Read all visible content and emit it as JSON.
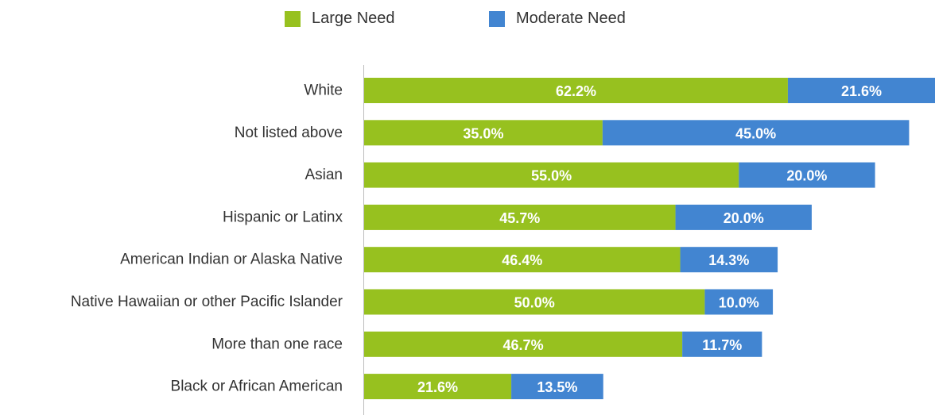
{
  "chart_data": {
    "type": "bar",
    "orientation": "horizontal",
    "stacked": true,
    "categories": [
      "White",
      "Not listed above",
      "Asian",
      "Hispanic or Latinx",
      "American Indian or Alaska Native",
      "Native Hawaiian or other Pacific Islander",
      "More than one race",
      "Black or African American"
    ],
    "series": [
      {
        "name": "Large Need",
        "color": "#97c11f",
        "values": [
          62.2,
          35.0,
          55.0,
          45.7,
          46.4,
          50.0,
          46.7,
          21.6
        ],
        "labels": [
          "62.2%",
          "35.0%",
          "55.0%",
          "45.7%",
          "46.4%",
          "50.0%",
          "46.7%",
          "21.6%"
        ]
      },
      {
        "name": "Moderate Need",
        "color": "#4285d1",
        "values": [
          21.6,
          45.0,
          20.0,
          20.0,
          14.3,
          10.0,
          11.7,
          13.5
        ],
        "labels": [
          "21.6%",
          "45.0%",
          "20.0%",
          "20.0%",
          "14.3%",
          "10.0%",
          "11.7%",
          "13.5%"
        ]
      }
    ],
    "xlim": [
      0,
      83.8
    ],
    "grid": false,
    "legend_position": "top-center"
  }
}
